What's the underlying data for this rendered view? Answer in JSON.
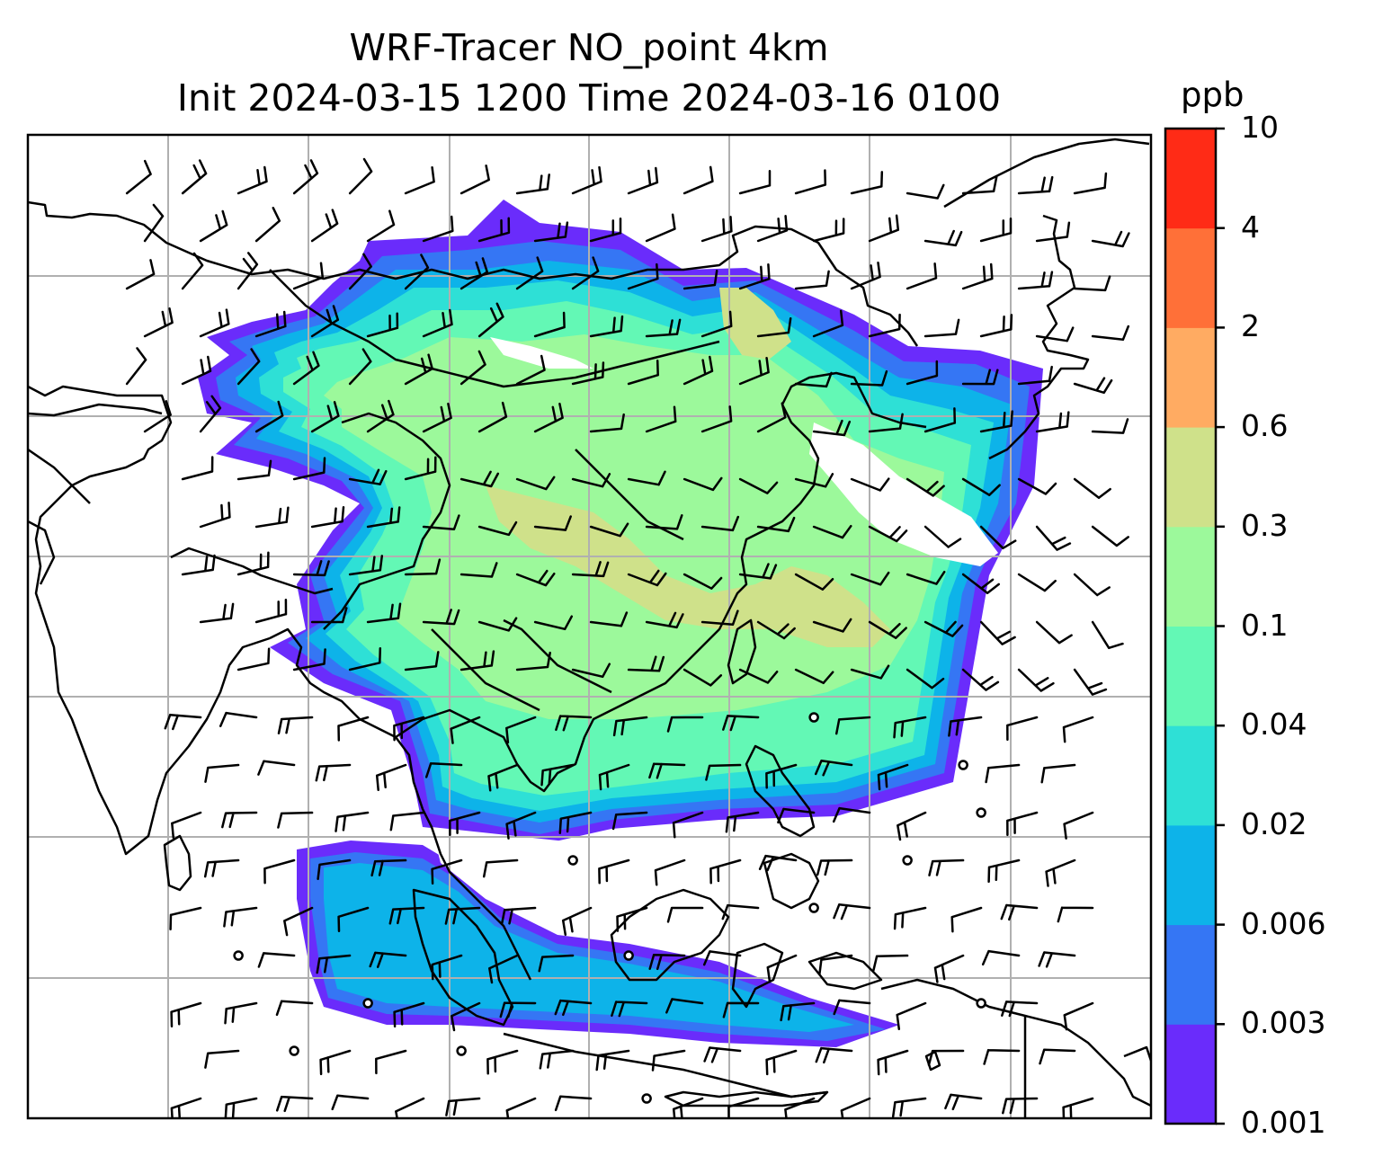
{
  "title_line1": "WRF-Tracer NO_point 4km",
  "title_line2": "Init 2024-03-15 1200 Time 2024-03-16 0100",
  "chart_data": {
    "type": "heatmap",
    "title": "WRF-Tracer NO_point 4km",
    "subtitle": "Init 2024-03-15 1200 Time 2024-03-16 0100",
    "variable": "NO tracer concentration",
    "units": "ppb",
    "grid": true,
    "overlays": [
      "coastlines",
      "country borders",
      "wind barbs"
    ],
    "colorbar": {
      "label": "ppb",
      "ticks": [
        "0.001",
        "0.003",
        "0.006",
        "0.02",
        "0.04",
        "0.1",
        "0.3",
        "0.6",
        "2",
        "4",
        "10"
      ],
      "levels": [
        0.001,
        0.003,
        0.006,
        0.02,
        0.04,
        0.1,
        0.3,
        0.6,
        2,
        4,
        10
      ],
      "colors": [
        "#6a2cfb",
        "#3576f4",
        "#0db3e9",
        "#2ee0d6",
        "#63f8b5",
        "#9cf99b",
        "#cfe18a",
        "#ffab62",
        "#ff7038",
        "#ff2b16"
      ]
    },
    "regions": [
      {
        "name": "outer plume",
        "level_bin": "0.001-0.003"
      },
      {
        "name": "plume edge",
        "level_bin": "0.003-0.006"
      },
      {
        "name": "plume",
        "level_bin": "0.02-0.04"
      },
      {
        "name": "plume body",
        "level_bin": "0.04-0.1"
      },
      {
        "name": "plume core",
        "level_bin": "0.1-0.3"
      },
      {
        "name": "plume maxima",
        "level_bin": "0.3-0.6"
      }
    ]
  }
}
